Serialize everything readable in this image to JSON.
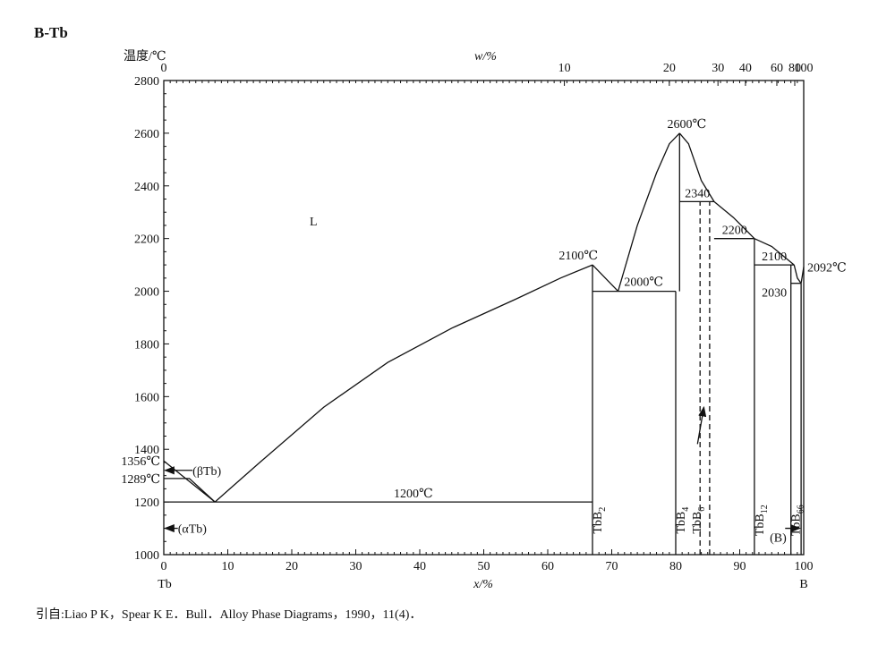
{
  "chart_data": {
    "type": "phase-diagram",
    "title": "B-Tb",
    "ylabel": "温度/℃",
    "xlabel_bottom": "x/%",
    "xlabel_top": "w/%",
    "ylim": [
      1000,
      2800
    ],
    "xlim": [
      0,
      100
    ],
    "y_ticks": [
      1000,
      1200,
      1400,
      1600,
      1800,
      2000,
      2200,
      2400,
      2600,
      2800
    ],
    "x_ticks": [
      0,
      10,
      20,
      30,
      40,
      50,
      60,
      70,
      80,
      90,
      100
    ],
    "x_tick_labels": [
      "0",
      "10",
      "20",
      "30",
      "40",
      "50",
      "60",
      "70",
      "80",
      "90",
      "100"
    ],
    "top_ticks": [
      {
        "label": "0",
        "x": 0
      },
      {
        "label": "10",
        "x": 62.6
      },
      {
        "label": "20",
        "x": 79.0
      },
      {
        "label": "30",
        "x": 86.6
      },
      {
        "label": "40",
        "x": 90.9
      },
      {
        "label": "60",
        "x": 95.8
      },
      {
        "label": "80",
        "x": 98.6
      },
      {
        "label": "100",
        "x": 100
      }
    ],
    "end_labels": {
      "left": "Tb",
      "right": "B"
    },
    "phase_label": "L",
    "phase_label_pos": {
      "x": 24,
      "y": 2270
    },
    "lines": [
      {
        "name": "liquidus-left-1",
        "points": [
          [
            0,
            1356
          ],
          [
            8,
            1200
          ]
        ]
      },
      {
        "name": "liquidus-left-2",
        "points": [
          [
            8,
            1200
          ],
          [
            15,
            1350
          ],
          [
            25,
            1560
          ],
          [
            35,
            1730
          ],
          [
            45,
            1860
          ],
          [
            55,
            1970
          ],
          [
            62,
            2050
          ],
          [
            67,
            2100
          ]
        ]
      },
      {
        "name": "liquidus-tbb2-right",
        "points": [
          [
            67,
            2100
          ],
          [
            69,
            2050
          ],
          [
            71,
            2000
          ]
        ]
      },
      {
        "name": "liquidus-tbb4-left",
        "points": [
          [
            71,
            2000
          ],
          [
            74,
            2250
          ],
          [
            77,
            2450
          ],
          [
            79,
            2560
          ],
          [
            80.6,
            2600
          ]
        ]
      },
      {
        "name": "liquidus-tbb4-right",
        "points": [
          [
            80.6,
            2600
          ],
          [
            82,
            2560
          ],
          [
            84,
            2420
          ],
          [
            86,
            2340
          ]
        ]
      },
      {
        "name": "liquidus-tbb6-right",
        "points": [
          [
            86,
            2340
          ],
          [
            89,
            2280
          ],
          [
            92.3,
            2200
          ]
        ]
      },
      {
        "name": "liquidus-tbb12-right",
        "points": [
          [
            92.3,
            2200
          ],
          [
            95,
            2170
          ],
          [
            97,
            2130
          ],
          [
            98.5,
            2100
          ]
        ]
      },
      {
        "name": "liquidus-tbb66-right",
        "points": [
          [
            98.5,
            2100
          ],
          [
            99,
            2050
          ],
          [
            99.6,
            2030
          ]
        ]
      },
      {
        "name": "liquidus-b-left",
        "points": [
          [
            99.6,
            2030
          ],
          [
            100,
            2092
          ]
        ]
      },
      {
        "name": "beta-tb-lower",
        "points": [
          [
            0,
            1289
          ],
          [
            4,
            1289
          ],
          [
            8,
            1200
          ]
        ]
      },
      {
        "name": "eutectic-1200",
        "points": [
          [
            0,
            1200
          ],
          [
            67,
            1200
          ]
        ]
      },
      {
        "name": "eutectic-2000",
        "points": [
          [
            67,
            2000
          ],
          [
            80,
            2000
          ]
        ]
      },
      {
        "name": "peritectic-2340",
        "points": [
          [
            80.6,
            2340
          ],
          [
            86,
            2340
          ]
        ]
      },
      {
        "name": "peritectic-2200",
        "points": [
          [
            86,
            2200
          ],
          [
            92.3,
            2200
          ]
        ]
      },
      {
        "name": "peritectic-2100",
        "points": [
          [
            92.3,
            2100
          ],
          [
            98.5,
            2100
          ]
        ]
      },
      {
        "name": "eutectic-2030",
        "points": [
          [
            98,
            2030
          ],
          [
            99.6,
            2030
          ]
        ]
      },
      {
        "name": "tbb2-line",
        "points": [
          [
            67,
            1000
          ],
          [
            67,
            2100
          ]
        ]
      },
      {
        "name": "tbb4-line",
        "points": [
          [
            80,
            1000
          ],
          [
            80,
            2000
          ]
        ]
      },
      {
        "name": "tbb4-upper-line",
        "points": [
          [
            80.6,
            2000
          ],
          [
            80.6,
            2600
          ]
        ]
      },
      {
        "name": "tbb12-line",
        "points": [
          [
            92.3,
            1000
          ],
          [
            92.3,
            2200
          ]
        ]
      },
      {
        "name": "tbb66-line",
        "points": [
          [
            98,
            1000
          ],
          [
            98,
            2100
          ]
        ]
      },
      {
        "name": "b-line",
        "points": [
          [
            99.6,
            1000
          ],
          [
            99.6,
            2030
          ]
        ]
      }
    ],
    "dashed_lines": [
      {
        "name": "tbb6-left",
        "points": [
          [
            83.8,
            1000
          ],
          [
            83.8,
            2340
          ]
        ]
      },
      {
        "name": "tbb6-right",
        "points": [
          [
            85.3,
            1000
          ],
          [
            85.3,
            2340
          ]
        ]
      }
    ],
    "annotations": [
      {
        "text": "1356℃",
        "x": 0,
        "y": 1356,
        "anchor": "end",
        "dx": -4,
        "dy": 5
      },
      {
        "text": "1289℃",
        "x": 0,
        "y": 1289,
        "anchor": "end",
        "dx": -4,
        "dy": 5
      },
      {
        "text": "(βTb)",
        "x": 4.5,
        "y": 1320,
        "anchor": "start",
        "dx": 0,
        "dy": 5
      },
      {
        "text": "(αTb)",
        "x": 2.2,
        "y": 1100,
        "anchor": "start",
        "dx": 0,
        "dy": 5
      },
      {
        "text": "1200℃",
        "x": 39,
        "y": 1200,
        "anchor": "middle",
        "dx": 0,
        "dy": -5
      },
      {
        "text": "2100℃",
        "x": 67,
        "y": 2100,
        "anchor": "end",
        "dx": 6,
        "dy": -6
      },
      {
        "text": "2000℃",
        "x": 75,
        "y": 2000,
        "anchor": "middle",
        "dx": 0,
        "dy": -6
      },
      {
        "text": "2600℃",
        "x": 80.6,
        "y": 2600,
        "anchor": "middle",
        "dx": 8,
        "dy": -6
      },
      {
        "text": "2340",
        "x": 83.4,
        "y": 2340,
        "anchor": "middle",
        "dx": 0,
        "dy": -5
      },
      {
        "text": "2200",
        "x": 89.2,
        "y": 2200,
        "anchor": "middle",
        "dx": 0,
        "dy": -5
      },
      {
        "text": "2100",
        "x": 95.4,
        "y": 2100,
        "anchor": "middle",
        "dx": 0,
        "dy": -5
      },
      {
        "text": "2030",
        "x": 95.4,
        "y": 2030,
        "anchor": "middle",
        "dx": 0,
        "dy": 5
      },
      {
        "text": "2092℃",
        "x": 100,
        "y": 2092,
        "anchor": "start",
        "dx": 4,
        "dy": 5
      },
      {
        "text": "(B)",
        "x": 96,
        "y": 1100,
        "anchor": "middle",
        "dx": 0,
        "dy": 5
      }
    ],
    "compound_labels": [
      {
        "base": "TbB",
        "sub": "2",
        "x": 67,
        "y": 1130
      },
      {
        "base": "TbB",
        "sub": "4",
        "x": 80,
        "y": 1130
      },
      {
        "base": "TbB",
        "sub": "6",
        "x": 84.5,
        "y": 1130
      },
      {
        "base": "TbB",
        "sub": "12",
        "x": 92.3,
        "y": 1130
      },
      {
        "base": "TbB",
        "sub": "66",
        "x": 98,
        "y": 1130
      }
    ],
    "arrows": [
      {
        "name": "beta-tb-arrow",
        "from": [
          4.5,
          1320
        ],
        "to": [
          0.2,
          1320
        ]
      },
      {
        "name": "alpha-tb-arrow",
        "from": [
          2.2,
          1100
        ],
        "to": [
          0.2,
          1100
        ]
      },
      {
        "name": "tbb6-arrow",
        "from": [
          83.4,
          1420
        ],
        "to": [
          84.4,
          1560
        ]
      },
      {
        "name": "b-arrow",
        "from": [
          97.1,
          1100
        ],
        "to": [
          99.4,
          1100
        ]
      }
    ]
  },
  "caption": "引自:Liao P K，Spear K E．Bull．Alloy Phase Diagrams，1990，11(4)．"
}
